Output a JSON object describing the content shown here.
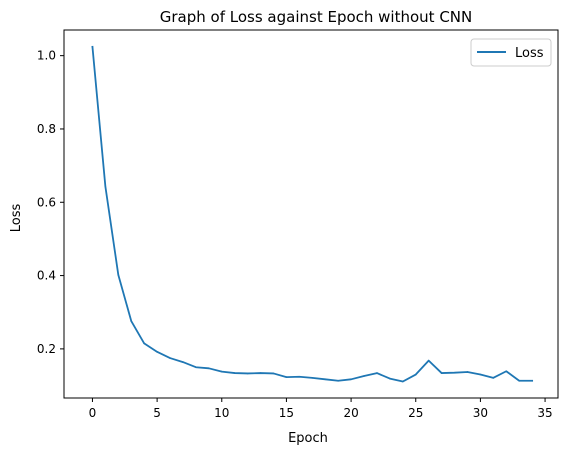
{
  "chart_data": {
    "type": "line",
    "title": "Graph of Loss against Epoch without CNN",
    "xlabel": "Epoch",
    "ylabel": "Loss",
    "xlim": [
      -2.2,
      36.0
    ],
    "ylim": [
      0.066,
      1.07
    ],
    "xticks": [
      0,
      5,
      10,
      15,
      20,
      25,
      30,
      35
    ],
    "yticks": [
      0.2,
      0.4,
      0.6,
      0.8,
      1.0
    ],
    "xtick_labels": [
      "0",
      "5",
      "10",
      "15",
      "20",
      "25",
      "30",
      "35"
    ],
    "ytick_labels": [
      "0.2",
      "0.4",
      "0.6",
      "0.8",
      "1.0"
    ],
    "grid": false,
    "legend_position": "top-right",
    "series": [
      {
        "name": "Loss",
        "color": "#1f77b4",
        "x": [
          0,
          1,
          2,
          3,
          4,
          5,
          6,
          7,
          8,
          9,
          10,
          11,
          12,
          13,
          14,
          15,
          16,
          17,
          18,
          19,
          20,
          21,
          22,
          23,
          24,
          25,
          26,
          27,
          28,
          29,
          30,
          31,
          32,
          33,
          34
        ],
        "y": [
          1.024,
          0.643,
          0.402,
          0.276,
          0.215,
          0.192,
          0.175,
          0.164,
          0.15,
          0.147,
          0.138,
          0.134,
          0.133,
          0.134,
          0.133,
          0.123,
          0.124,
          0.121,
          0.117,
          0.113,
          0.117,
          0.126,
          0.134,
          0.119,
          0.111,
          0.13,
          0.168,
          0.134,
          0.135,
          0.137,
          0.13,
          0.121,
          0.139,
          0.113,
          0.113
        ]
      }
    ]
  }
}
